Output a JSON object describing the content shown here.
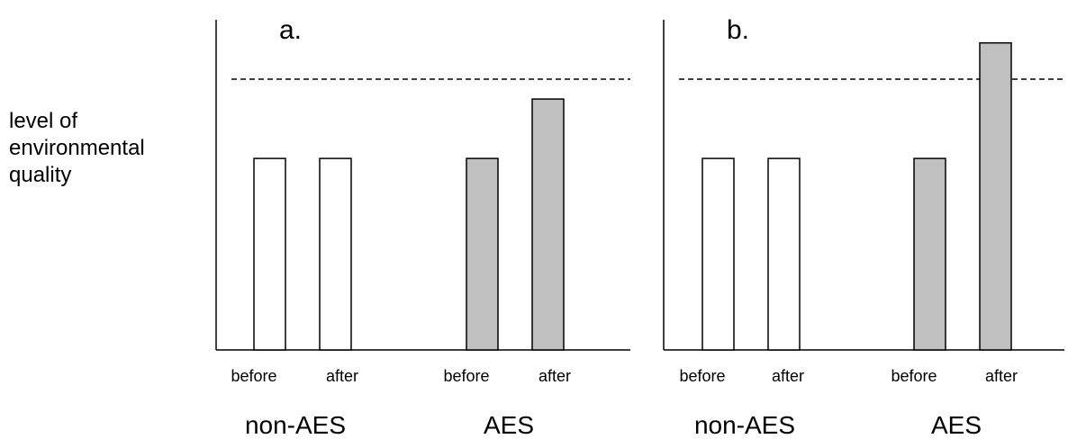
{
  "ylabel_lines": [
    "level of",
    "environmental",
    "quality"
  ],
  "colors": {
    "control_fill": "#ffffff",
    "treatment_fill": "#c0c0c0",
    "stroke": "#000000"
  },
  "chart_data": [
    {
      "type": "bar",
      "panel_label": "a.",
      "ylabel": "level of environmental quality",
      "ylim": [
        0,
        1
      ],
      "reference_line": 0.82,
      "reference_style": "dashed",
      "groups": [
        {
          "name": "non-AES",
          "categories": [
            "before",
            "after"
          ],
          "values": [
            0.58,
            0.58
          ]
        },
        {
          "name": "AES",
          "categories": [
            "before",
            "after"
          ],
          "values": [
            0.58,
            0.76
          ]
        }
      ]
    },
    {
      "type": "bar",
      "panel_label": "b.",
      "ylabel": "level of environmental quality",
      "ylim": [
        0,
        1
      ],
      "reference_line": 0.82,
      "reference_style": "dashed",
      "groups": [
        {
          "name": "non-AES",
          "categories": [
            "before",
            "after"
          ],
          "values": [
            0.58,
            0.58
          ]
        },
        {
          "name": "AES",
          "categories": [
            "before",
            "after"
          ],
          "values": [
            0.58,
            0.93
          ]
        }
      ]
    }
  ]
}
